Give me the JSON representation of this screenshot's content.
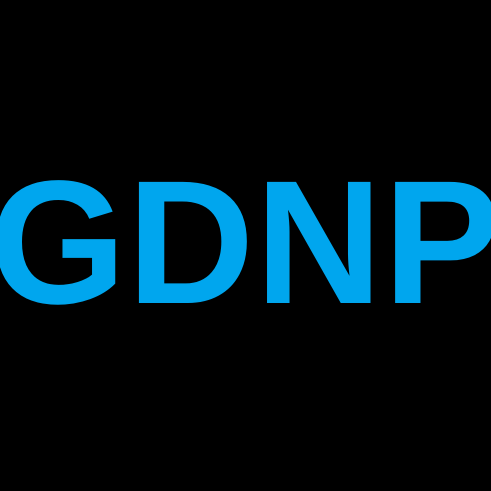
{
  "logo": {
    "text": "GDNP",
    "color": "#00A6EE"
  },
  "background_color": "#000000"
}
